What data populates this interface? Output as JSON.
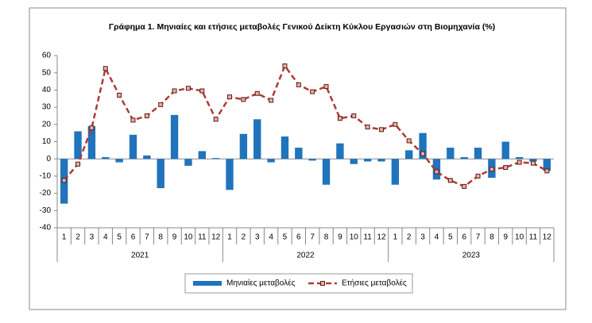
{
  "chart_data": {
    "type": "combo",
    "title": "Γράφημα 1.  Μηνιαίες και ετήσιες μεταβολές  Γενικού Δείκτη Κύκλου Εργασιών στη Βιομηχανία  (%)",
    "categories": [
      "1",
      "2",
      "3",
      "4",
      "5",
      "6",
      "7",
      "8",
      "9",
      "10",
      "11",
      "12",
      "1",
      "2",
      "3",
      "4",
      "5",
      "6",
      "7",
      "8",
      "9",
      "10",
      "11",
      "12",
      "1",
      "2",
      "3",
      "4",
      "5",
      "6",
      "7",
      "8",
      "9",
      "10",
      "11",
      "12"
    ],
    "category_groups": [
      "2021",
      "2022",
      "2023"
    ],
    "series": [
      {
        "name": "Μηνιαίες μεταβολές",
        "type": "bar",
        "color": "#1f74bc",
        "values": [
          -26,
          16,
          19,
          1,
          -2,
          14,
          2,
          -17,
          25.5,
          -4,
          4.5,
          0.5,
          -18,
          14.5,
          23,
          -2,
          13,
          6.5,
          -1,
          -15,
          9,
          -3,
          -1.5,
          -1.5,
          -15,
          5,
          15,
          -12,
          6.5,
          1,
          6.5,
          -11,
          10,
          1,
          -1.5,
          -7
        ]
      },
      {
        "name": "Ετήσιες μεταβολές",
        "type": "line",
        "color": "#b03a36",
        "values": [
          -12.5,
          -3,
          18,
          52.5,
          37,
          22.5,
          25,
          31.5,
          39.5,
          41,
          39.5,
          23,
          36,
          34.5,
          38,
          34,
          54,
          43,
          39,
          42,
          23.5,
          25,
          18.5,
          17,
          20,
          10.5,
          3,
          -7.5,
          -12.5,
          -16,
          -10,
          -6,
          -5,
          -2,
          -2.5,
          -7
        ]
      }
    ],
    "ylim": [
      -40,
      60
    ],
    "yticks": [
      -40,
      -30,
      -20,
      -10,
      0,
      10,
      20,
      30,
      40,
      50,
      60
    ],
    "grid": false,
    "legend": "bottom"
  }
}
